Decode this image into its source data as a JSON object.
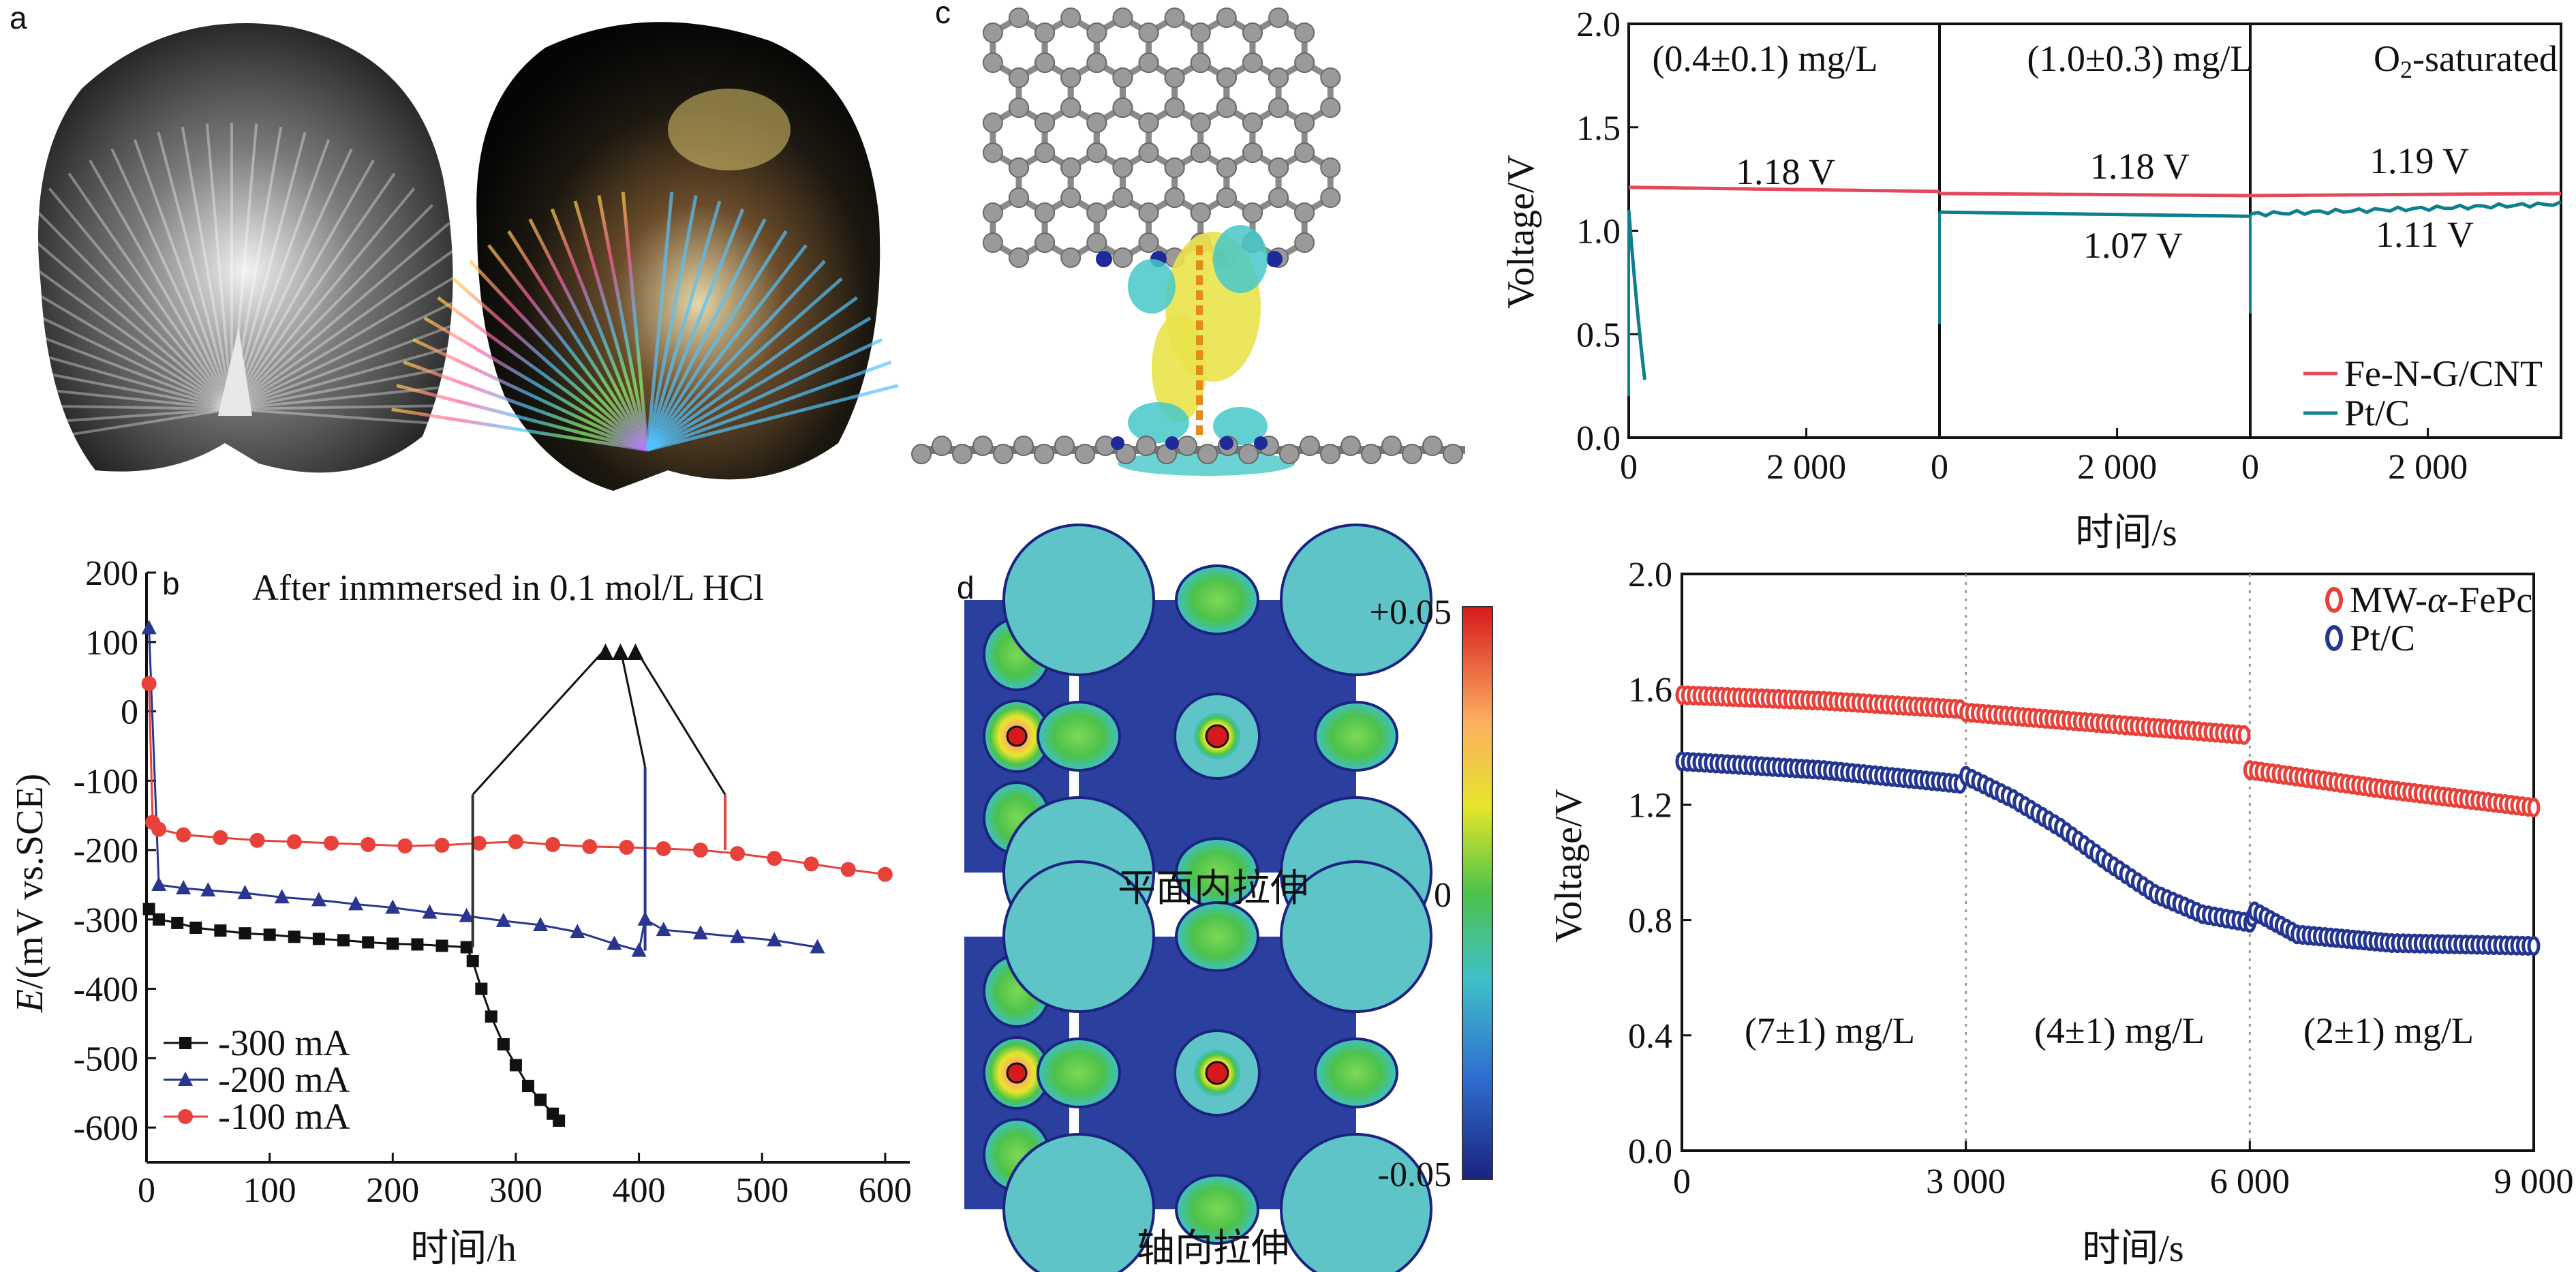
{
  "panel_labels": {
    "a": "a",
    "b": "b",
    "c": "c",
    "d": "d"
  },
  "colors": {
    "red": "#e8413a",
    "blue": "#2a3590",
    "black": "#111111",
    "teal": "#0e7f8c",
    "pink": "#e24a5c",
    "navy": "#24368f"
  },
  "panel_d": {
    "label_in_plane": "平面内拉伸",
    "label_axial": "轴向拉伸",
    "colorbar_max": "+0.05",
    "colorbar_mid": "0",
    "colorbar_min": "-0.05"
  },
  "chart_data": [
    {
      "id": "b",
      "type": "scatter",
      "title": "After inmmersed in 0.1 mol/L HCl",
      "xlabel": "时间/h",
      "ylabel": "E/(mV vs.SCE)",
      "ylabel_italic": "E",
      "ylabel_rest": "/(mV vs.SCE)",
      "xlim": [
        0,
        620
      ],
      "ylim": [
        -650,
        200
      ],
      "xticks": [
        "0",
        "100",
        "200",
        "300",
        "400",
        "500",
        "600"
      ],
      "yticks": [
        "200",
        "100",
        "0",
        "-100",
        "-200",
        "-300",
        "-400",
        "-500",
        "-600"
      ],
      "legend": [
        "-300 mA",
        "-200 mA",
        "-100 mA"
      ],
      "series": [
        {
          "name": "-300 mA",
          "marker": "square",
          "color": "#111111",
          "x": [
            2,
            10,
            25,
            40,
            60,
            80,
            100,
            120,
            140,
            160,
            180,
            200,
            220,
            240,
            260,
            265,
            272,
            280,
            290,
            300,
            310,
            320,
            330,
            335
          ],
          "y": [
            -285,
            -300,
            -305,
            -312,
            -316,
            -320,
            -322,
            -325,
            -328,
            -330,
            -333,
            -335,
            -336,
            -338,
            -340,
            -360,
            -400,
            -440,
            -480,
            -510,
            -540,
            -560,
            -580,
            -590
          ]
        },
        {
          "name": "-200 mA",
          "marker": "triangle",
          "color": "#2a3590",
          "x": [
            2,
            10,
            30,
            50,
            80,
            110,
            140,
            170,
            200,
            230,
            260,
            290,
            320,
            350,
            380,
            400,
            405,
            420,
            450,
            480,
            510,
            545
          ],
          "y": [
            120,
            -250,
            -255,
            -258,
            -262,
            -268,
            -272,
            -278,
            -283,
            -290,
            -295,
            -302,
            -308,
            -318,
            -335,
            -345,
            -300,
            -315,
            -320,
            -325,
            -330,
            -340
          ]
        },
        {
          "name": "-100 mA",
          "marker": "circle",
          "color": "#e8413a",
          "x": [
            2,
            5,
            10,
            30,
            60,
            90,
            120,
            150,
            180,
            210,
            240,
            270,
            300,
            330,
            360,
            390,
            420,
            450,
            480,
            510,
            540,
            570,
            600
          ],
          "y": [
            40,
            -160,
            -170,
            -178,
            -182,
            -186,
            -188,
            -190,
            -192,
            -194,
            -193,
            -190,
            -188,
            -192,
            -195,
            -196,
            -198,
            -200,
            -205,
            -212,
            -220,
            -228,
            -235
          ]
        }
      ],
      "arrow_origins_x": [
        265,
        405,
        470
      ],
      "arrow_target_label_x": 385
    },
    {
      "id": "c_right",
      "type": "line",
      "xlabel": "时间/s",
      "ylabel": "Voltage/V",
      "ylim": [
        0,
        2
      ],
      "yticks": [
        "0.0",
        "0.5",
        "1.0",
        "1.5",
        "2.0"
      ],
      "xticks": [
        "0",
        "2 000",
        "0",
        "2 000",
        "0",
        "2 000"
      ],
      "segments": [
        "(0.4±0.1) mg/L",
        "(1.0±0.3) mg/L",
        "O2-saturated"
      ],
      "segment_xmax": 3500,
      "annotations": [
        "1.18 V",
        "1.18 V",
        "1.19 V",
        "1.07 V",
        "1.11 V"
      ],
      "legend": [
        "Fe-N-G/CNT",
        "Pt/C"
      ],
      "series": [
        {
          "name": "Fe-N-G/CNT",
          "color": "#e24a5c",
          "segment_values": [
            [
              1.21,
              1.19
            ],
            [
              1.18,
              1.17
            ],
            [
              1.17,
              1.18
            ]
          ]
        },
        {
          "name": "Pt/C",
          "color": "#0e7f8c",
          "segment_values": [
            [
              1.1,
              0.28
            ],
            [
              1.09,
              1.07
            ],
            [
              1.08,
              1.13
            ]
          ]
        }
      ]
    },
    {
      "id": "d_right",
      "type": "scatter",
      "xlabel": "时间/s",
      "ylabel": "Voltage/V",
      "xlim": [
        0,
        9000
      ],
      "ylim": [
        0,
        2
      ],
      "xticks": [
        "0",
        "3 000",
        "6 000",
        "9 000"
      ],
      "yticks": [
        "0.0",
        "0.4",
        "0.8",
        "1.2",
        "1.6",
        "2.0"
      ],
      "regions": [
        "(7±1) mg/L",
        "(4±1) mg/L",
        "(2±1) mg/L"
      ],
      "legend": [
        "MW-α-FePc",
        "Pt/C"
      ],
      "legend_parts": [
        [
          "MW-",
          "α",
          "-FePc"
        ],
        [
          "Pt/C",
          "",
          ""
        ]
      ],
      "series": [
        {
          "name": "MW-α-FePc",
          "color": "#e8413a",
          "x": [
            0,
            1500,
            3000,
            3000,
            4500,
            6000,
            6000,
            7500,
            9000
          ],
          "y": [
            1.58,
            1.56,
            1.53,
            1.52,
            1.48,
            1.44,
            1.32,
            1.25,
            1.19
          ]
        },
        {
          "name": "Pt/C",
          "color": "#24368f",
          "x": [
            0,
            1500,
            3000,
            3000,
            3500,
            4000,
            4500,
            5000,
            5500,
            6000,
            6050,
            6500,
            7500,
            9000
          ],
          "y": [
            1.35,
            1.32,
            1.27,
            1.3,
            1.22,
            1.12,
            1.0,
            0.89,
            0.82,
            0.79,
            0.83,
            0.75,
            0.72,
            0.71
          ]
        }
      ]
    }
  ]
}
